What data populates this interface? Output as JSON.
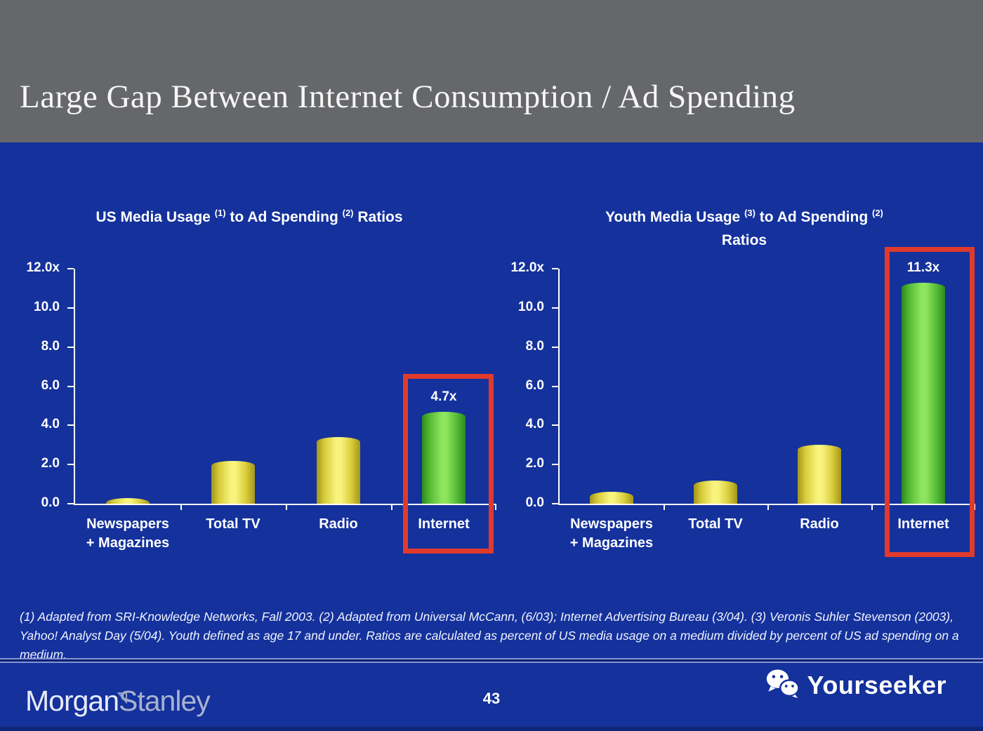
{
  "slide": {
    "title": "Large Gap Between Internet Consumption / Ad Spending",
    "page_number": "43",
    "footnote": "(1) Adapted from SRI-Knowledge Networks, Fall 2003.  (2) Adapted from Universal McCann, (6/03); Internet Advertising Bureau (3/04). (3) Veronis Suhler Stevenson (2003), Yahoo! Analyst Day (5/04).  Youth defined as age 17 and under.  Ratios are calculated as percent of US media usage on a medium divided by percent of US ad spending on a medium."
  },
  "footer": {
    "brand_part1": "Morgan",
    "brand_part2": "Stanley",
    "watermark": "Yourseeker",
    "watermark_icon": "wechat-icon"
  },
  "colors": {
    "background_blue": "#14319c",
    "header_gray": "#65676b",
    "bar_yellow": "#f9f37e",
    "bar_green": "#8fe55e",
    "highlight_red": "#e03a2c",
    "text_white": "#ffffff"
  },
  "chart_data": [
    {
      "type": "bar",
      "name": "us-media-usage-chart",
      "title": "US Media Usage (1) to Ad Spending (2) Ratios",
      "title_lines": [
        [
          {
            "t": "US Media Usage "
          },
          {
            "s": "(1)"
          },
          {
            "t": " to Ad Spending "
          },
          {
            "s": "(2)"
          },
          {
            "t": " Ratios"
          }
        ]
      ],
      "categories": [
        "Newspapers\n+ Magazines",
        "Total TV",
        "Radio",
        "Internet"
      ],
      "values": [
        0.3,
        2.2,
        3.4,
        4.7
      ],
      "highlight_index": 3,
      "highlight_label": "4.7x",
      "ylim": [
        0,
        12
      ],
      "yticks": [
        "12.0x",
        "10.0",
        "8.0",
        "6.0",
        "4.0",
        "2.0",
        "0.0"
      ],
      "grid": false,
      "legend": "none"
    },
    {
      "type": "bar",
      "name": "youth-media-usage-chart",
      "title": "Youth Media Usage (3) to Ad Spending (2) Ratios",
      "title_lines": [
        [
          {
            "t": "Youth Media Usage "
          },
          {
            "s": "(3)"
          },
          {
            "t": " to Ad Spending "
          },
          {
            "s": "(2)"
          }
        ],
        [
          {
            "t": "Ratios"
          }
        ]
      ],
      "categories": [
        "Newspapers\n+ Magazines",
        "Total TV",
        "Radio",
        "Internet"
      ],
      "values": [
        0.6,
        1.2,
        3.0,
        11.3
      ],
      "highlight_index": 3,
      "highlight_label": "11.3x",
      "ylim": [
        0,
        12
      ],
      "yticks": [
        "12.0x",
        "10.0",
        "8.0",
        "6.0",
        "4.0",
        "2.0",
        "0.0"
      ],
      "grid": false,
      "legend": "none"
    }
  ]
}
